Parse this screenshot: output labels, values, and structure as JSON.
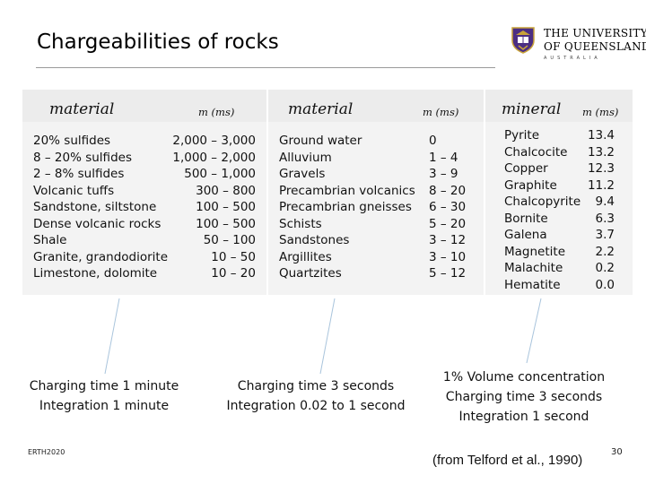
{
  "title": "Chargeabilities of rocks",
  "logo": {
    "line1": "THE UNIVERSITY",
    "line2": "OF QUEENSLAND",
    "line3": "AUSTRALIA",
    "crest_icon": "university-crest-icon",
    "colors": {
      "purple": "#4b2e83",
      "gold": "#c8a23a"
    }
  },
  "table1": {
    "header_material": "material",
    "header_m": "m (ms)",
    "rows": [
      {
        "material": "20% sulfides",
        "m": "2,000 – 3,000"
      },
      {
        "material": "8 – 20% sulfides",
        "m": "1,000 – 2,000"
      },
      {
        "material": "2 – 8% sulfides",
        "m": "500 – 1,000"
      },
      {
        "material": "Volcanic tuffs",
        "m": "300 – 800"
      },
      {
        "material": "Sandstone, siltstone",
        "m": "100 – 500"
      },
      {
        "material": "Dense volcanic rocks",
        "m": "100 – 500"
      },
      {
        "material": "Shale",
        "m": "50 – 100"
      },
      {
        "material": "Granite, grandodiorite",
        "m": "10 – 50"
      },
      {
        "material": "Limestone, dolomite",
        "m": "10 – 20"
      }
    ]
  },
  "table2": {
    "header_material": "material",
    "header_m": "m (ms)",
    "rows": [
      {
        "material": "Ground water",
        "m": "0"
      },
      {
        "material": "Alluvium",
        "m": "1 – 4"
      },
      {
        "material": "Gravels",
        "m": "3 – 9"
      },
      {
        "material": "Precambrian volcanics",
        "m": "8 – 20"
      },
      {
        "material": "Precambrian gneisses",
        "m": "6 – 30"
      },
      {
        "material": "Schists",
        "m": "5 – 20"
      },
      {
        "material": "Sandstones",
        "m": "3 – 12"
      },
      {
        "material": "Argillites",
        "m": "3 – 10"
      },
      {
        "material": "Quartzites",
        "m": "5 – 12"
      }
    ]
  },
  "table3": {
    "header_mineral": "mineral",
    "header_m": "m (ms)",
    "rows": [
      {
        "mineral": "Pyrite",
        "m": "13.4"
      },
      {
        "mineral": "Chalcocite",
        "m": "13.2"
      },
      {
        "mineral": "Copper",
        "m": "12.3"
      },
      {
        "mineral": "Graphite",
        "m": "11.2"
      },
      {
        "mineral": "Chalcopyrite",
        "m": "9.4"
      },
      {
        "mineral": "Bornite",
        "m": "6.3"
      },
      {
        "mineral": "Galena",
        "m": "3.7"
      },
      {
        "mineral": "Magnetite",
        "m": "2.2"
      },
      {
        "mineral": "Malachite",
        "m": "0.2"
      },
      {
        "mineral": "Hematite",
        "m": "0.0"
      }
    ]
  },
  "captions": {
    "left": [
      "Charging time 1 minute",
      "Integration 1 minute"
    ],
    "middle": [
      "Charging time 3 seconds",
      "Integration 0.02 to 1 second"
    ],
    "right": [
      "1% Volume concentration",
      "Charging time 3 seconds",
      "Integration 1 second"
    ]
  },
  "footer": {
    "course": "ERTH2020",
    "reference": "(from Telford et al., 1990)",
    "page": "30"
  }
}
